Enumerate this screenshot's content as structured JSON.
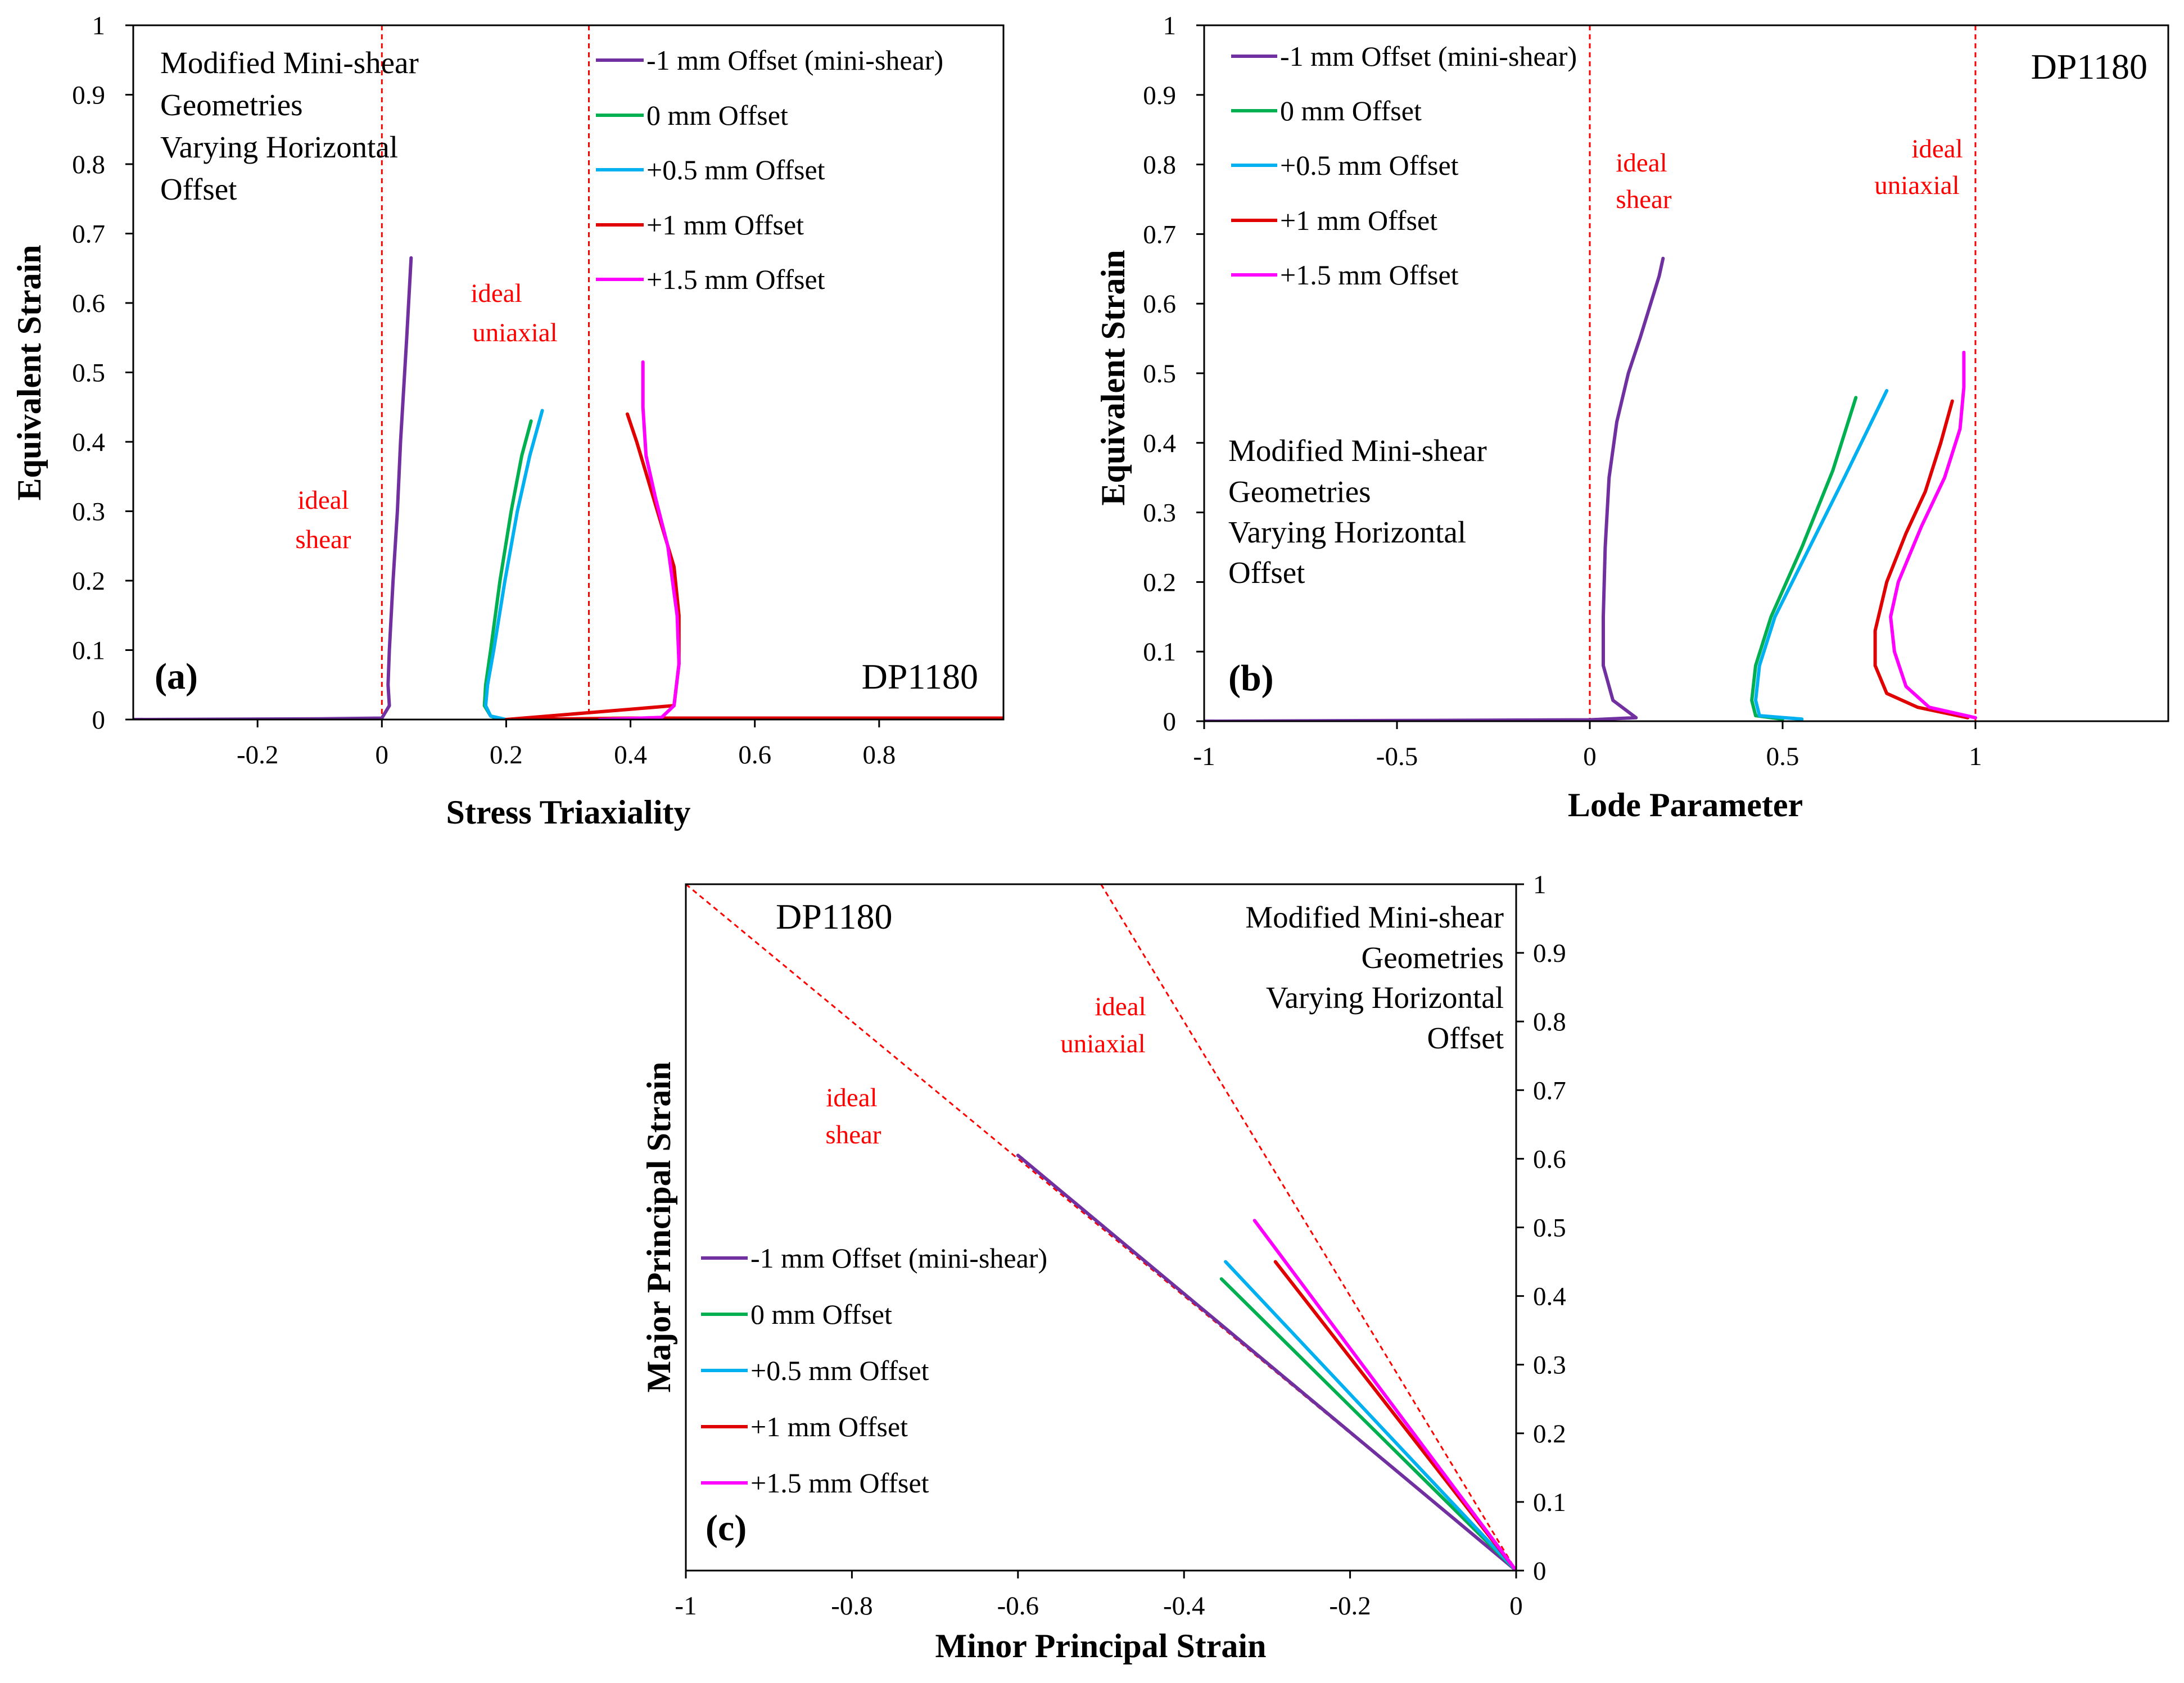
{
  "colors": {
    "series": [
      "#7030a0",
      "#00b050",
      "#00b0f0",
      "#e00000",
      "#ff00ff"
    ],
    "reference": "#ff0000",
    "axis": "#000000"
  },
  "chart_data": [
    {
      "panel": "(a)",
      "type": "line",
      "xlabel": "Stress Triaxiality",
      "ylabel": "Equivalent Strain",
      "xlim": [
        -0.4,
        1.0
      ],
      "ylim": [
        0,
        1
      ],
      "x_ticks": [
        -0.2,
        0,
        0.2,
        0.4,
        0.6,
        0.8
      ],
      "y_ticks": [
        0,
        0.1,
        0.2,
        0.3,
        0.4,
        0.5,
        0.6,
        0.7,
        0.8,
        0.9,
        1
      ],
      "x_tick_labels": [
        "-0.2",
        "0",
        "0.2",
        "0.4",
        "0.6",
        "0.8"
      ],
      "y_tick_labels": [
        "0",
        "0.1",
        "0.2",
        "0.3",
        "0.4",
        "0.5",
        "0.6",
        "0.7",
        "0.8",
        "0.9",
        "1"
      ],
      "material": "DP1180",
      "note_lines": [
        "Modified Mini-shear",
        "Geometries",
        "Varying Horizontal",
        "Offset"
      ],
      "reference_lines": [
        {
          "orientation": "vertical",
          "value": 0,
          "label_lines": [
            "ideal",
            "shear"
          ]
        },
        {
          "orientation": "vertical",
          "value": 0.333,
          "label_lines": [
            "ideal",
            "uniaxial"
          ]
        }
      ],
      "legend_position": "top-right",
      "series": [
        {
          "name": "-1 mm Offset (mini-shear)",
          "x": [
            -0.4,
            -0.1,
            0.0,
            0.012,
            0.01,
            0.012,
            0.018,
            0.025,
            0.03,
            0.04,
            0.047
          ],
          "y": [
            0,
            0.001,
            0.002,
            0.02,
            0.05,
            0.1,
            0.2,
            0.3,
            0.4,
            0.55,
            0.665
          ]
        },
        {
          "name": "0 mm Offset",
          "x": [
            0.19,
            0.175,
            0.165,
            0.167,
            0.175,
            0.19,
            0.208,
            0.225,
            0.24
          ],
          "y": [
            0,
            0.005,
            0.02,
            0.05,
            0.1,
            0.2,
            0.3,
            0.38,
            0.43
          ]
        },
        {
          "name": "+0.5 mm Offset",
          "x": [
            0.2,
            0.175,
            0.167,
            0.17,
            0.18,
            0.198,
            0.218,
            0.238,
            0.258
          ],
          "y": [
            0,
            0.005,
            0.02,
            0.05,
            0.1,
            0.2,
            0.3,
            0.38,
            0.445
          ]
        },
        {
          "name": "+1 mm Offset",
          "x": [
            1.0,
            0.6,
            0.4,
            0.3,
            0.2,
            0.47,
            0.478,
            0.478,
            0.47,
            0.44,
            0.41,
            0.395
          ],
          "y": [
            0.002,
            0.002,
            0.002,
            0.001,
            0,
            0.02,
            0.08,
            0.15,
            0.22,
            0.31,
            0.4,
            0.44
          ]
        },
        {
          "name": "+1.5 mm Offset",
          "x": [
            0.35,
            0.45,
            0.47,
            0.478,
            0.475,
            0.46,
            0.44,
            0.425,
            0.42,
            0.42
          ],
          "y": [
            0,
            0.003,
            0.02,
            0.08,
            0.15,
            0.25,
            0.32,
            0.38,
            0.45,
            0.515
          ]
        }
      ]
    },
    {
      "panel": "(b)",
      "type": "line",
      "xlabel": "Lode Parameter",
      "ylabel": "Equivalent Strain",
      "xlim": [
        -1,
        1.5
      ],
      "ylim": [
        0,
        1
      ],
      "x_ticks": [
        -1,
        -0.5,
        0,
        0.5,
        1
      ],
      "y_ticks": [
        0,
        0.1,
        0.2,
        0.3,
        0.4,
        0.5,
        0.6,
        0.7,
        0.8,
        0.9,
        1
      ],
      "x_tick_labels": [
        "-1",
        "-0.5",
        "0",
        "0.5",
        "1"
      ],
      "y_tick_labels": [
        "0",
        "0.1",
        "0.2",
        "0.3",
        "0.4",
        "0.5",
        "0.6",
        "0.7",
        "0.8",
        "0.9",
        "1"
      ],
      "material": "DP1180",
      "note_lines": [
        "Modified Mini-shear",
        "Geometries",
        "Varying Horizontal",
        "Offset"
      ],
      "reference_lines": [
        {
          "orientation": "vertical",
          "value": 0,
          "label_lines": [
            "ideal",
            "shear"
          ]
        },
        {
          "orientation": "vertical",
          "value": 1,
          "label_lines": [
            "ideal",
            "uniaxial"
          ]
        }
      ],
      "legend_position": "top-left",
      "series": [
        {
          "name": "-1 mm Offset (mini-shear)",
          "x": [
            -1.0,
            -0.5,
            0.0,
            0.12,
            0.06,
            0.035,
            0.035,
            0.04,
            0.05,
            0.07,
            0.1,
            0.13,
            0.18,
            0.19
          ],
          "y": [
            0,
            0.001,
            0.002,
            0.005,
            0.03,
            0.08,
            0.15,
            0.25,
            0.35,
            0.43,
            0.5,
            0.55,
            0.64,
            0.665
          ]
        },
        {
          "name": "0 mm Offset",
          "x": [
            0.5,
            0.43,
            0.42,
            0.43,
            0.47,
            0.55,
            0.63,
            0.69
          ],
          "y": [
            0.003,
            0.008,
            0.03,
            0.08,
            0.15,
            0.25,
            0.36,
            0.465
          ]
        },
        {
          "name": "+0.5 mm Offset",
          "x": [
            0.55,
            0.44,
            0.43,
            0.44,
            0.48,
            0.57,
            0.66,
            0.77
          ],
          "y": [
            0.003,
            0.008,
            0.03,
            0.08,
            0.15,
            0.25,
            0.35,
            0.475
          ]
        },
        {
          "name": "+1 mm Offset",
          "x": [
            0.98,
            0.85,
            0.77,
            0.74,
            0.74,
            0.77,
            0.82,
            0.87,
            0.91,
            0.94
          ],
          "y": [
            0.005,
            0.02,
            0.04,
            0.08,
            0.13,
            0.2,
            0.27,
            0.33,
            0.4,
            0.46
          ]
        },
        {
          "name": "+1.5 mm Offset",
          "x": [
            1.0,
            0.88,
            0.82,
            0.79,
            0.78,
            0.8,
            0.86,
            0.92,
            0.96,
            0.97,
            0.97
          ],
          "y": [
            0.005,
            0.02,
            0.05,
            0.1,
            0.15,
            0.2,
            0.28,
            0.35,
            0.42,
            0.48,
            0.53
          ]
        }
      ]
    },
    {
      "panel": "(c)",
      "type": "line",
      "xlabel": "Minor Principal Strain",
      "ylabel": "Major Principal Strain",
      "xlim": [
        -1,
        0
      ],
      "ylim": [
        0,
        1
      ],
      "x_ticks": [
        -1,
        -0.8,
        -0.6,
        -0.4,
        -0.2,
        0
      ],
      "y_ticks": [
        0,
        0.1,
        0.2,
        0.3,
        0.4,
        0.5,
        0.6,
        0.7,
        0.8,
        0.9,
        1
      ],
      "x_tick_labels": [
        "-1",
        "-0.8",
        "-0.6",
        "-0.4",
        "-0.2",
        "0"
      ],
      "y_tick_labels": [
        "0",
        "0.1",
        "0.2",
        "0.3",
        "0.4",
        "0.5",
        "0.6",
        "0.7",
        "0.8",
        "0.9",
        "1"
      ],
      "material": "DP1180",
      "note_lines": [
        "Modified Mini-shear",
        "Geometries",
        "Varying Horizontal",
        "Offset"
      ],
      "reference_lines": [
        {
          "orientation": "sloped",
          "slope": -1,
          "label_lines": [
            "ideal",
            "shear"
          ]
        },
        {
          "orientation": "sloped",
          "slope": -2,
          "label_lines": [
            "ideal",
            "uniaxial"
          ]
        }
      ],
      "legend_position": "lower-left",
      "series": [
        {
          "name": "-1 mm Offset (mini-shear)",
          "x": [
            0,
            -0.6
          ],
          "y": [
            0,
            0.605
          ]
        },
        {
          "name": "0 mm Offset",
          "x": [
            0,
            -0.355
          ],
          "y": [
            0,
            0.425
          ]
        },
        {
          "name": "+0.5 mm Offset",
          "x": [
            0,
            -0.35
          ],
          "y": [
            0,
            0.45
          ]
        },
        {
          "name": "+1 mm Offset",
          "x": [
            0,
            -0.29
          ],
          "y": [
            0,
            0.45
          ]
        },
        {
          "name": "+1.5 mm Offset",
          "x": [
            0,
            -0.315
          ],
          "y": [
            0,
            0.51
          ]
        }
      ]
    }
  ]
}
